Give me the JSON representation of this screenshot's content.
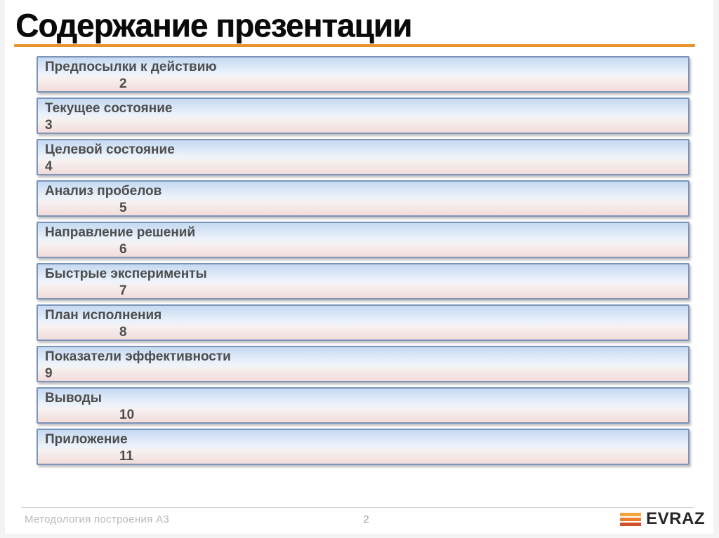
{
  "title": "Содержание презентации",
  "toc": {
    "items": [
      {
        "label": "Предпосылки к действию",
        "page": "2",
        "indented": true
      },
      {
        "label": "Текущее состояние",
        "page": "3",
        "indented": false
      },
      {
        "label": "Целевой состояние",
        "page": "4",
        "indented": false
      },
      {
        "label": "Анализ пробелов",
        "page": "5",
        "indented": true
      },
      {
        "label": "Направление решений",
        "page": "6",
        "indented": true
      },
      {
        "label": "Быстрые эксперименты",
        "page": "7",
        "indented": true
      },
      {
        "label": "План исполнения",
        "page": "8",
        "indented": true
      },
      {
        "label": "Показатели эффективности",
        "page": "9",
        "indented": false
      },
      {
        "label": "Выводы",
        "page": "10",
        "indented": true
      },
      {
        "label": "Приложение",
        "page": "11",
        "indented": true
      }
    ]
  },
  "footer": {
    "left_text": "Методология построения А3",
    "page_number": "2",
    "logo_text": "EVRAZ"
  },
  "colors": {
    "title_underline": "#E8932C",
    "bar_border": "#7B94B8",
    "bar_gradient_top": "#C5D9F1",
    "bar_gradient_mid": "#EDF3FB",
    "bar_gradient_bottom": "#F2DCDA",
    "item_text": "#4D4D4D",
    "footer_text": "#B9B9B9",
    "page_number_color": "#A0A0A0",
    "evraz_yellow": "#F2A33C",
    "evraz_orange": "#EC7D2B",
    "evraz_red": "#D2512B",
    "logo_text": "#262626"
  }
}
